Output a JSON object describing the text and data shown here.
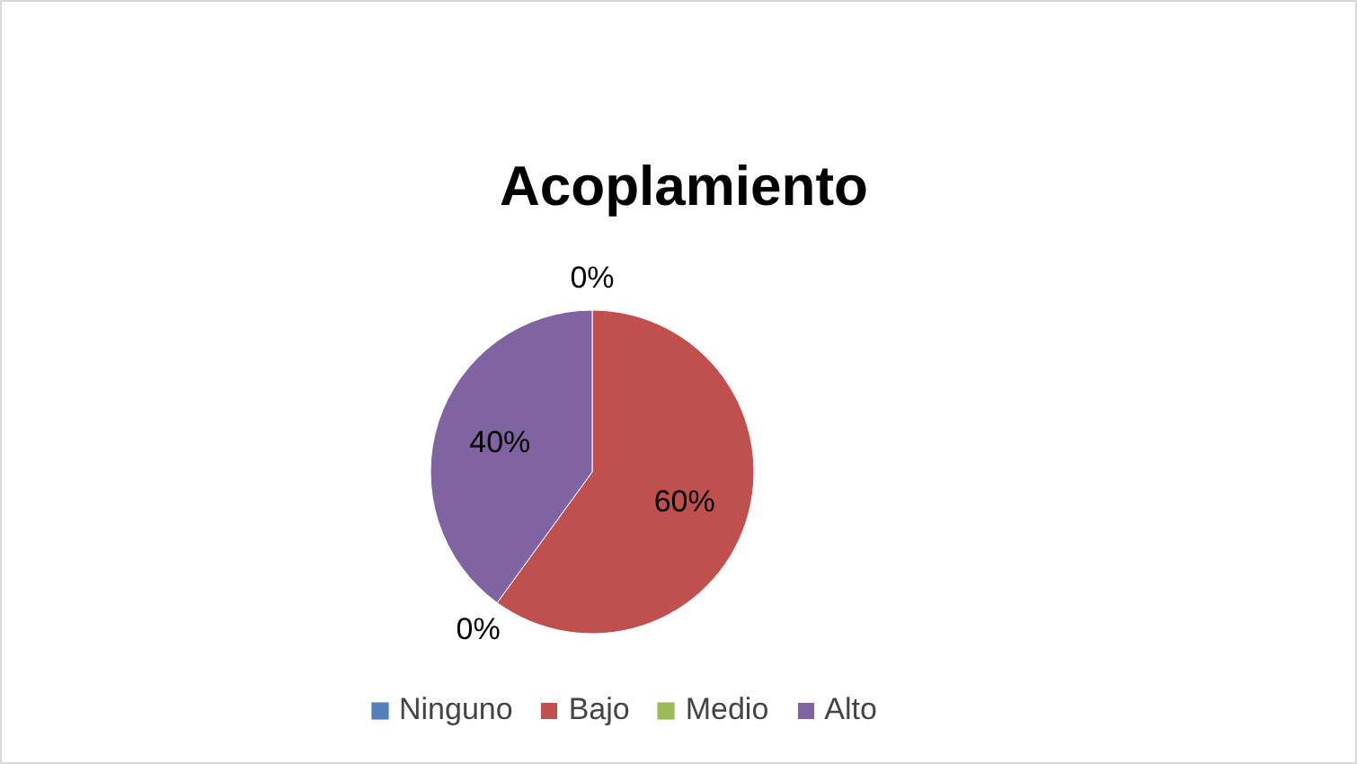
{
  "chart_data": {
    "type": "pie",
    "title": "Acoplamiento",
    "categories": [
      "Ninguno",
      "Bajo",
      "Medio",
      "Alto"
    ],
    "values": [
      0,
      60,
      0,
      40
    ],
    "colors": [
      "#4f81bd",
      "#c0504d",
      "#9bbb59",
      "#8064a2"
    ],
    "value_labels": [
      "0%",
      "60%",
      "0%",
      "40%"
    ],
    "legend": "bottom"
  }
}
